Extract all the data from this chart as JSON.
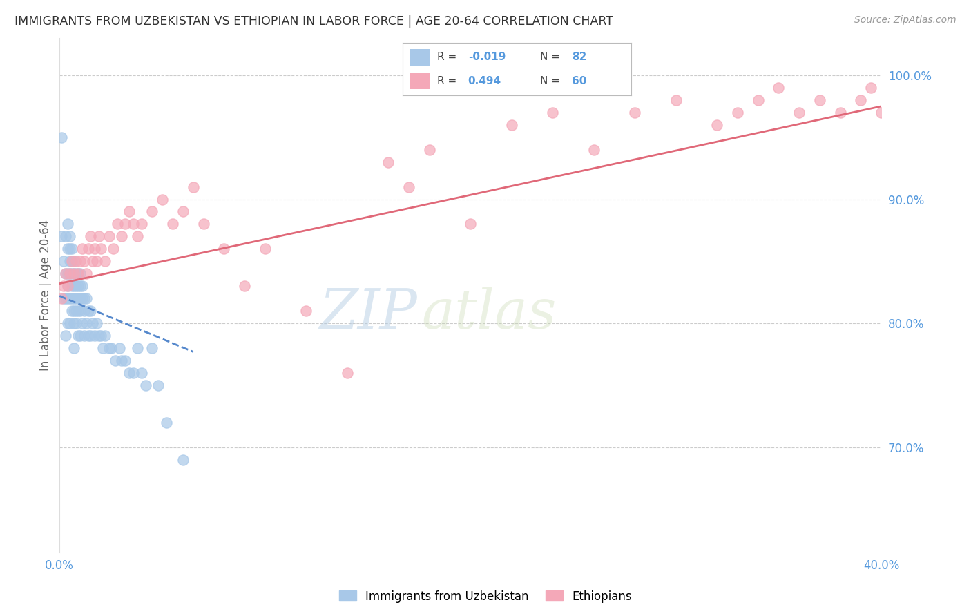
{
  "title": "IMMIGRANTS FROM UZBEKISTAN VS ETHIOPIAN IN LABOR FORCE | AGE 20-64 CORRELATION CHART",
  "source": "Source: ZipAtlas.com",
  "ylabel": "In Labor Force | Age 20-64",
  "xlim": [
    0.0,
    0.4
  ],
  "ylim": [
    0.615,
    1.03
  ],
  "y_ticks_right": [
    0.7,
    0.8,
    0.9,
    1.0
  ],
  "y_tick_labels_right": [
    "70.0%",
    "80.0%",
    "90.0%",
    "100.0%"
  ],
  "color_uzbek": "#a8c8e8",
  "color_ethiop": "#f4a8b8",
  "color_uzbek_line": "#5588cc",
  "color_ethiop_line": "#e06878",
  "color_axis": "#5599dd",
  "watermark_zip": "ZIP",
  "watermark_atlas": "atlas",
  "legend_label_uzbek": "Immigrants from Uzbekistan",
  "legend_label_ethiop": "Ethiopians",
  "uzbek_x": [
    0.001,
    0.001,
    0.002,
    0.002,
    0.003,
    0.003,
    0.003,
    0.003,
    0.004,
    0.004,
    0.004,
    0.004,
    0.004,
    0.004,
    0.005,
    0.005,
    0.005,
    0.005,
    0.005,
    0.005,
    0.006,
    0.006,
    0.006,
    0.006,
    0.006,
    0.006,
    0.007,
    0.007,
    0.007,
    0.007,
    0.007,
    0.007,
    0.007,
    0.008,
    0.008,
    0.008,
    0.008,
    0.008,
    0.009,
    0.009,
    0.009,
    0.009,
    0.009,
    0.01,
    0.01,
    0.01,
    0.01,
    0.01,
    0.011,
    0.011,
    0.011,
    0.012,
    0.012,
    0.012,
    0.013,
    0.013,
    0.014,
    0.014,
    0.015,
    0.015,
    0.016,
    0.017,
    0.018,
    0.019,
    0.02,
    0.021,
    0.022,
    0.024,
    0.025,
    0.027,
    0.029,
    0.03,
    0.032,
    0.034,
    0.036,
    0.038,
    0.04,
    0.042,
    0.045,
    0.048,
    0.052,
    0.06
  ],
  "uzbek_y": [
    0.95,
    0.87,
    0.85,
    0.82,
    0.87,
    0.84,
    0.82,
    0.79,
    0.88,
    0.86,
    0.84,
    0.83,
    0.82,
    0.8,
    0.87,
    0.86,
    0.85,
    0.84,
    0.82,
    0.8,
    0.86,
    0.85,
    0.84,
    0.83,
    0.82,
    0.81,
    0.85,
    0.84,
    0.83,
    0.82,
    0.81,
    0.8,
    0.78,
    0.84,
    0.83,
    0.82,
    0.81,
    0.8,
    0.84,
    0.83,
    0.82,
    0.81,
    0.79,
    0.84,
    0.83,
    0.82,
    0.81,
    0.79,
    0.83,
    0.82,
    0.8,
    0.82,
    0.81,
    0.79,
    0.82,
    0.8,
    0.81,
    0.79,
    0.81,
    0.79,
    0.8,
    0.79,
    0.8,
    0.79,
    0.79,
    0.78,
    0.79,
    0.78,
    0.78,
    0.77,
    0.78,
    0.77,
    0.77,
    0.76,
    0.76,
    0.78,
    0.76,
    0.75,
    0.78,
    0.75,
    0.72,
    0.69
  ],
  "ethiop_x": [
    0.001,
    0.002,
    0.003,
    0.004,
    0.005,
    0.006,
    0.007,
    0.008,
    0.009,
    0.01,
    0.011,
    0.012,
    0.013,
    0.014,
    0.015,
    0.016,
    0.017,
    0.018,
    0.019,
    0.02,
    0.022,
    0.024,
    0.026,
    0.028,
    0.03,
    0.032,
    0.034,
    0.036,
    0.038,
    0.04,
    0.045,
    0.05,
    0.055,
    0.06,
    0.065,
    0.07,
    0.08,
    0.09,
    0.1,
    0.12,
    0.14,
    0.16,
    0.17,
    0.18,
    0.2,
    0.22,
    0.24,
    0.26,
    0.28,
    0.3,
    0.32,
    0.33,
    0.34,
    0.35,
    0.36,
    0.37,
    0.38,
    0.39,
    0.395,
    0.4
  ],
  "ethiop_y": [
    0.82,
    0.83,
    0.84,
    0.83,
    0.84,
    0.85,
    0.84,
    0.85,
    0.84,
    0.85,
    0.86,
    0.85,
    0.84,
    0.86,
    0.87,
    0.85,
    0.86,
    0.85,
    0.87,
    0.86,
    0.85,
    0.87,
    0.86,
    0.88,
    0.87,
    0.88,
    0.89,
    0.88,
    0.87,
    0.88,
    0.89,
    0.9,
    0.88,
    0.89,
    0.91,
    0.88,
    0.86,
    0.83,
    0.86,
    0.81,
    0.76,
    0.93,
    0.91,
    0.94,
    0.88,
    0.96,
    0.97,
    0.94,
    0.97,
    0.98,
    0.96,
    0.97,
    0.98,
    0.99,
    0.97,
    0.98,
    0.97,
    0.98,
    0.99,
    0.97
  ],
  "uzbek_line_x": [
    0.0,
    0.065
  ],
  "uzbek_line_y": [
    0.822,
    0.777
  ],
  "ethiop_line_x": [
    0.0,
    0.4
  ],
  "ethiop_line_y": [
    0.832,
    0.975
  ]
}
